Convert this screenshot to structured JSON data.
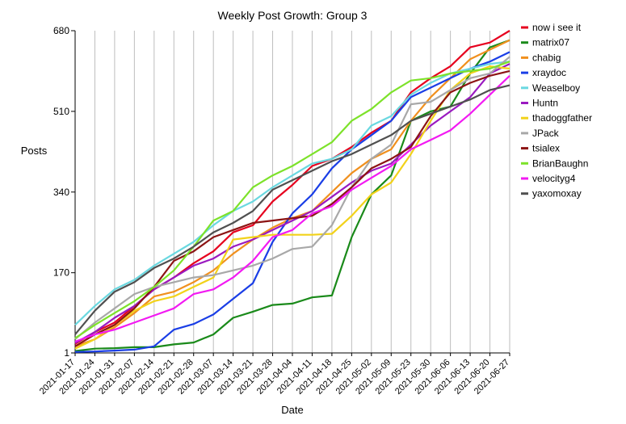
{
  "chart_data": {
    "type": "line",
    "title": "Weekly Post Growth: Group 3",
    "xlabel": "Date",
    "ylabel": "Posts",
    "grid": "vertical",
    "legend_position": "right",
    "ylim": [
      1,
      680
    ],
    "yticks": [
      1,
      170,
      340,
      510,
      680
    ],
    "x": [
      "2021-01-17",
      "2021-01-24",
      "2021-01-31",
      "2021-02-07",
      "2021-02-14",
      "2021-02-21",
      "2021-02-28",
      "2021-03-07",
      "2021-03-14",
      "2021-03-21",
      "2021-03-28",
      "2021-04-04",
      "2021-04-11",
      "2021-04-18",
      "2021-04-25",
      "2021-05-02",
      "2021-05-09",
      "2021-05-23",
      "2021-05-30",
      "2021-06-06",
      "2021-06-13",
      "2021-06-20",
      "2021-06-27"
    ],
    "series": [
      {
        "name": "now i see it",
        "color": "#e6001e",
        "values": [
          [
            0,
            20
          ],
          [
            1,
            45
          ],
          [
            2,
            65
          ],
          [
            3,
            100
          ],
          [
            4,
            135
          ],
          [
            5,
            160
          ],
          [
            6,
            190
          ],
          [
            7,
            215
          ],
          [
            8,
            255
          ],
          [
            9,
            270
          ],
          [
            10,
            320
          ],
          [
            11,
            355
          ],
          [
            12,
            395
          ],
          [
            13,
            410
          ],
          [
            14,
            435
          ],
          [
            15,
            465
          ],
          [
            16,
            490
          ],
          [
            17,
            550
          ],
          [
            18,
            580
          ],
          [
            19,
            605
          ],
          [
            20,
            645
          ],
          [
            21,
            655
          ],
          [
            22,
            680
          ]
        ]
      },
      {
        "name": "matrix07",
        "color": "#1a8a1a",
        "values": [
          [
            0,
            5
          ],
          [
            1,
            10
          ],
          [
            2,
            11
          ],
          [
            3,
            13
          ],
          [
            4,
            13
          ],
          [
            5,
            19
          ],
          [
            6,
            23
          ],
          [
            7,
            40
          ],
          [
            8,
            75
          ],
          [
            9,
            88
          ],
          [
            10,
            102
          ],
          [
            11,
            105
          ],
          [
            12,
            118
          ],
          [
            13,
            122
          ],
          [
            14,
            245
          ],
          [
            15,
            335
          ],
          [
            16,
            375
          ],
          [
            17,
            490
          ],
          [
            18,
            510
          ],
          [
            19,
            520
          ],
          [
            20,
            590
          ],
          [
            21,
            645
          ],
          [
            22,
            660
          ]
        ]
      },
      {
        "name": "chabig",
        "color": "#f0901e",
        "values": [
          [
            0,
            15
          ],
          [
            1,
            30
          ],
          [
            2,
            55
          ],
          [
            3,
            85
          ],
          [
            4,
            120
          ],
          [
            5,
            130
          ],
          [
            6,
            150
          ],
          [
            7,
            175
          ],
          [
            8,
            210
          ],
          [
            9,
            240
          ],
          [
            10,
            265
          ],
          [
            11,
            285
          ],
          [
            12,
            300
          ],
          [
            13,
            340
          ],
          [
            14,
            380
          ],
          [
            15,
            410
          ],
          [
            16,
            430
          ],
          [
            17,
            490
          ],
          [
            18,
            540
          ],
          [
            19,
            580
          ],
          [
            20,
            620
          ],
          [
            21,
            640
          ],
          [
            22,
            660
          ]
        ]
      },
      {
        "name": "xraydoc",
        "color": "#1a3ee6",
        "values": [
          [
            0,
            3
          ],
          [
            1,
            4
          ],
          [
            2,
            6
          ],
          [
            3,
            8
          ],
          [
            4,
            15
          ],
          [
            5,
            50
          ],
          [
            6,
            62
          ],
          [
            7,
            82
          ],
          [
            8,
            115
          ],
          [
            9,
            148
          ],
          [
            10,
            235
          ],
          [
            11,
            295
          ],
          [
            12,
            335
          ],
          [
            13,
            390
          ],
          [
            14,
            430
          ],
          [
            15,
            460
          ],
          [
            16,
            490
          ],
          [
            17,
            540
          ],
          [
            18,
            560
          ],
          [
            19,
            580
          ],
          [
            20,
            600
          ],
          [
            21,
            615
          ],
          [
            22,
            635
          ]
        ]
      },
      {
        "name": "Weaselboy",
        "color": "#6ad8e0",
        "values": [
          [
            0,
            60
          ],
          [
            1,
            100
          ],
          [
            2,
            135
          ],
          [
            3,
            155
          ],
          [
            4,
            185
          ],
          [
            5,
            210
          ],
          [
            6,
            235
          ],
          [
            7,
            270
          ],
          [
            8,
            300
          ],
          [
            9,
            320
          ],
          [
            10,
            350
          ],
          [
            11,
            375
          ],
          [
            12,
            400
          ],
          [
            13,
            410
          ],
          [
            14,
            430
          ],
          [
            15,
            480
          ],
          [
            16,
            500
          ],
          [
            17,
            545
          ],
          [
            18,
            570
          ],
          [
            19,
            590
          ],
          [
            20,
            600
          ],
          [
            21,
            610
          ],
          [
            22,
            615
          ]
        ]
      },
      {
        "name": "Huntn",
        "color": "#9a1ac0",
        "values": [
          [
            0,
            22
          ],
          [
            1,
            45
          ],
          [
            2,
            75
          ],
          [
            3,
            100
          ],
          [
            4,
            135
          ],
          [
            5,
            160
          ],
          [
            6,
            185
          ],
          [
            7,
            200
          ],
          [
            8,
            225
          ],
          [
            9,
            240
          ],
          [
            10,
            260
          ],
          [
            11,
            280
          ],
          [
            12,
            300
          ],
          [
            13,
            330
          ],
          [
            14,
            360
          ],
          [
            15,
            385
          ],
          [
            16,
            400
          ],
          [
            17,
            440
          ],
          [
            18,
            480
          ],
          [
            19,
            510
          ],
          [
            20,
            540
          ],
          [
            21,
            590
          ],
          [
            22,
            610
          ]
        ]
      },
      {
        "name": "thadoggfather",
        "color": "#f2d21a",
        "values": [
          [
            0,
            10
          ],
          [
            1,
            30
          ],
          [
            2,
            60
          ],
          [
            3,
            90
          ],
          [
            4,
            110
          ],
          [
            5,
            120
          ],
          [
            6,
            140
          ],
          [
            7,
            160
          ],
          [
            8,
            240
          ],
          [
            9,
            245
          ],
          [
            10,
            250
          ],
          [
            11,
            250
          ],
          [
            12,
            250
          ],
          [
            13,
            252
          ],
          [
            14,
            290
          ],
          [
            15,
            335
          ],
          [
            16,
            360
          ],
          [
            17,
            420
          ],
          [
            18,
            490
          ],
          [
            19,
            555
          ],
          [
            20,
            590
          ],
          [
            21,
            605
          ],
          [
            22,
            600
          ]
        ]
      },
      {
        "name": "JPack",
        "color": "#a8a8a8",
        "values": [
          [
            0,
            30
          ],
          [
            1,
            65
          ],
          [
            2,
            95
          ],
          [
            3,
            125
          ],
          [
            4,
            140
          ],
          [
            5,
            150
          ],
          [
            6,
            160
          ],
          [
            7,
            165
          ],
          [
            8,
            175
          ],
          [
            9,
            185
          ],
          [
            10,
            200
          ],
          [
            11,
            220
          ],
          [
            12,
            225
          ],
          [
            13,
            270
          ],
          [
            14,
            350
          ],
          [
            15,
            410
          ],
          [
            16,
            440
          ],
          [
            17,
            525
          ],
          [
            18,
            530
          ],
          [
            19,
            555
          ],
          [
            20,
            580
          ],
          [
            21,
            590
          ],
          [
            22,
            625
          ]
        ]
      },
      {
        "name": "tsialex",
        "color": "#8c1414",
        "values": [
          [
            0,
            15
          ],
          [
            1,
            40
          ],
          [
            2,
            60
          ],
          [
            3,
            95
          ],
          [
            4,
            140
          ],
          [
            5,
            195
          ],
          [
            6,
            215
          ],
          [
            7,
            245
          ],
          [
            8,
            260
          ],
          [
            9,
            275
          ],
          [
            10,
            280
          ],
          [
            11,
            285
          ],
          [
            12,
            290
          ],
          [
            13,
            315
          ],
          [
            14,
            350
          ],
          [
            15,
            390
          ],
          [
            16,
            410
          ],
          [
            17,
            435
          ],
          [
            18,
            500
          ],
          [
            19,
            550
          ],
          [
            20,
            570
          ],
          [
            21,
            585
          ],
          [
            22,
            595
          ]
        ]
      },
      {
        "name": "BrianBaughn",
        "color": "#7de22a",
        "values": [
          [
            0,
            32
          ],
          [
            1,
            60
          ],
          [
            2,
            85
          ],
          [
            3,
            110
          ],
          [
            4,
            140
          ],
          [
            5,
            175
          ],
          [
            6,
            225
          ],
          [
            7,
            280
          ],
          [
            8,
            300
          ],
          [
            9,
            350
          ],
          [
            10,
            375
          ],
          [
            11,
            395
          ],
          [
            12,
            420
          ],
          [
            13,
            445
          ],
          [
            14,
            490
          ],
          [
            15,
            515
          ],
          [
            16,
            550
          ],
          [
            17,
            575
          ],
          [
            18,
            580
          ],
          [
            19,
            590
          ],
          [
            20,
            595
          ],
          [
            21,
            600
          ],
          [
            22,
            615
          ]
        ]
      },
      {
        "name": "velocityg4",
        "color": "#f21af2",
        "values": [
          [
            0,
            25
          ],
          [
            1,
            40
          ],
          [
            2,
            50
          ],
          [
            3,
            65
          ],
          [
            4,
            80
          ],
          [
            5,
            95
          ],
          [
            6,
            125
          ],
          [
            7,
            135
          ],
          [
            8,
            160
          ],
          [
            9,
            195
          ],
          [
            10,
            245
          ],
          [
            11,
            260
          ],
          [
            12,
            295
          ],
          [
            13,
            310
          ],
          [
            14,
            345
          ],
          [
            15,
            370
          ],
          [
            16,
            395
          ],
          [
            17,
            430
          ],
          [
            18,
            450
          ],
          [
            19,
            470
          ],
          [
            20,
            505
          ],
          [
            21,
            545
          ],
          [
            22,
            585
          ]
        ]
      },
      {
        "name": "yaxomoxay",
        "color": "#505050",
        "values": [
          [
            0,
            40
          ],
          [
            1,
            90
          ],
          [
            2,
            130
          ],
          [
            3,
            150
          ],
          [
            4,
            180
          ],
          [
            5,
            200
          ],
          [
            6,
            225
          ],
          [
            7,
            255
          ],
          [
            8,
            275
          ],
          [
            9,
            300
          ],
          [
            10,
            345
          ],
          [
            11,
            365
          ],
          [
            12,
            385
          ],
          [
            13,
            405
          ],
          [
            14,
            420
          ],
          [
            15,
            440
          ],
          [
            16,
            460
          ],
          [
            17,
            490
          ],
          [
            18,
            505
          ],
          [
            19,
            520
          ],
          [
            20,
            535
          ],
          [
            21,
            555
          ],
          [
            22,
            565
          ]
        ]
      }
    ]
  }
}
